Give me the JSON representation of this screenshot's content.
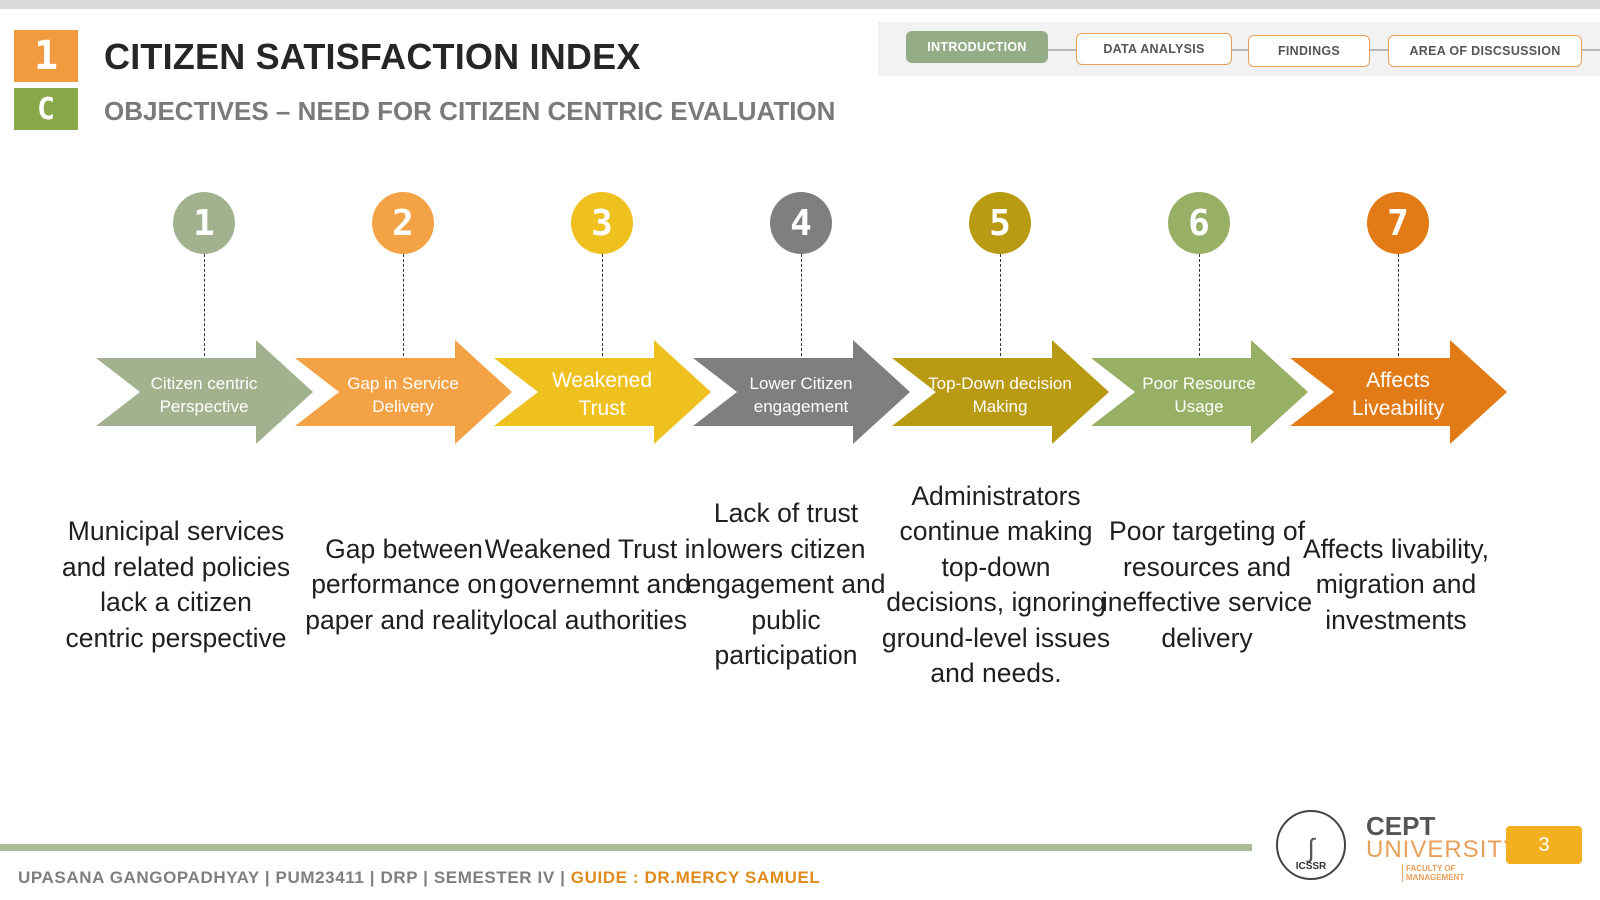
{
  "header": {
    "section_number": "1",
    "section_letter": "C",
    "title": "CITIZEN SATISFACTION INDEX",
    "subtitle": "OBJECTIVES –  NEED FOR CITIZEN CENTRIC EVALUATION"
  },
  "nav": {
    "tabs": [
      {
        "label": "INTRODUCTION",
        "active": true
      },
      {
        "label": "DATA ANALYSIS",
        "active": false
      },
      {
        "label": "FINDINGS",
        "active": false
      },
      {
        "label": "AREA OF DISCSUSSION",
        "active": false
      }
    ]
  },
  "steps": [
    {
      "number": "1",
      "color": "#a3b28e",
      "label": "Citizen centric Perspective",
      "description": "Municipal services and related policies lack a citizen centric perspective"
    },
    {
      "number": "2",
      "color": "#f3a245",
      "label": "Gap in Service Delivery",
      "description": "Gap between performance on paper and reality"
    },
    {
      "number": "3",
      "color": "#efc11f",
      "label": "Weakened Trust",
      "description": "Weakened Trust in governemnt and local authorities"
    },
    {
      "number": "4",
      "color": "#7f7f7f",
      "label": "Lower Citizen engagement",
      "description": "Lack of trust lowers citizen engagement and public participation"
    },
    {
      "number": "5",
      "color": "#b99a13",
      "label": "Top-Down decision Making",
      "description": "Administrators continue making top-down decisions, ignoring ground-level issues and needs."
    },
    {
      "number": "6",
      "color": "#98b066",
      "label": "Poor Resource Usage",
      "description": "Poor targeting of resources and ineffective service delivery"
    },
    {
      "number": "7",
      "color": "#e27b15",
      "label": "Affects Liveability",
      "description": "Affects livability, migration and investments"
    }
  ],
  "footer": {
    "author": "UPASANA GANGOPADHYAY | PUM23411 | DRP | SEMESTER IV | ",
    "guide": "GUIDE : DR.MERCY SAMUEL",
    "page_number": "3",
    "icssr": "ICSSR",
    "cept_top": "CEPT",
    "cept_bottom": "UNIVERSITY",
    "faculty": "FACULTY OF MANAGEMENT"
  }
}
